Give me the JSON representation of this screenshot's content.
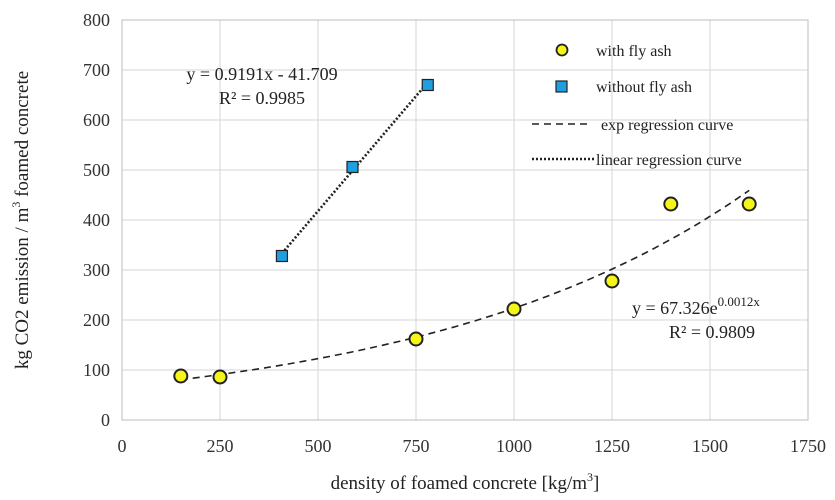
{
  "chart_data": {
    "type": "scatter",
    "xlabel": "density of foamed concrete [kg/m",
    "xlabel_sup": "3",
    "xlabel_end": "]",
    "ylabel_a": "kg CO2 emission / m",
    "ylabel_sup": "3",
    "ylabel_b": " foamed concrete",
    "xlim": [
      0,
      1750
    ],
    "ylim": [
      0,
      800
    ],
    "xticks": [
      "0",
      "250",
      "500",
      "750",
      "1000",
      "1250",
      "1500",
      "1750"
    ],
    "yticks": [
      "0",
      "100",
      "200",
      "300",
      "400",
      "500",
      "600",
      "700",
      "800"
    ],
    "grid": true,
    "legend_position": "top-right",
    "series": [
      {
        "name": "with fly ash",
        "marker": "circle",
        "color": "#f5f51a",
        "x": [
          150,
          250,
          750,
          1000,
          1250,
          1400,
          1600
        ],
        "y": [
          88,
          86,
          162,
          222,
          278,
          432,
          432
        ]
      },
      {
        "name": "without fly ash",
        "marker": "square",
        "color": "#1f9fe0",
        "x": [
          408,
          588,
          780
        ],
        "y": [
          328,
          506,
          670
        ]
      }
    ],
    "fits": [
      {
        "name": "exp regression curve",
        "style": "dashed",
        "kind": "exponential",
        "a": 67.326,
        "b": 0.0012,
        "x_range": [
          150,
          1600
        ],
        "equation": "y = 67.326e",
        "equation_sup": "0.0012x",
        "r2": "R² = 0.9809"
      },
      {
        "name": "linear regression curve",
        "style": "dotted",
        "kind": "linear",
        "slope": 0.9191,
        "intercept": -41.709,
        "x_range": [
          408,
          780
        ],
        "equation": "y = 0.9191x - 41.709",
        "r2": "R² = 0.9985"
      }
    ]
  }
}
